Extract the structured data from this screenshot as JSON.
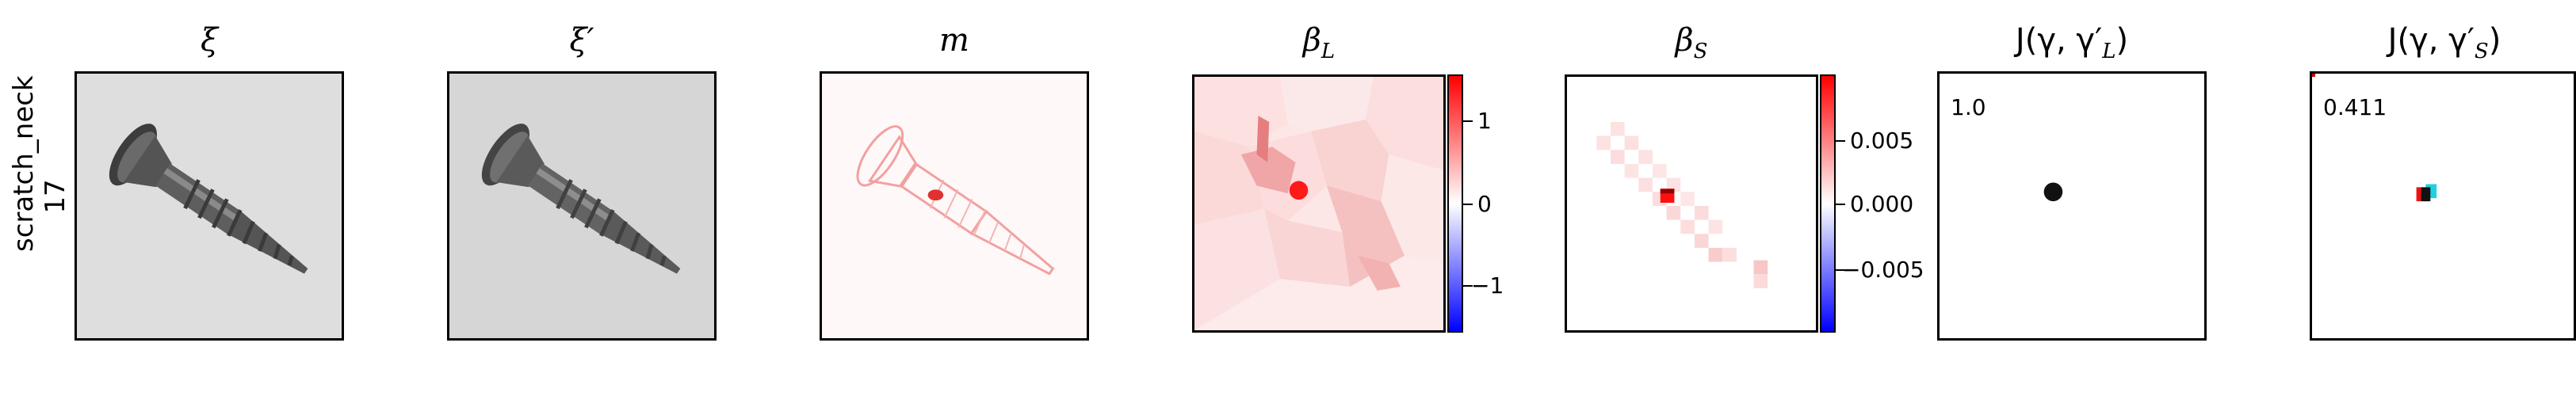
{
  "row_label": {
    "line1": "scratch_neck",
    "line2": "17"
  },
  "panels": {
    "xi": {
      "title": "ξ"
    },
    "xi_prime": {
      "title": "ξ′"
    },
    "m": {
      "title": "m"
    },
    "beta_l": {
      "title_main": "β",
      "title_sub": "L",
      "colorbar_ticks": [
        "1",
        "0",
        "−1"
      ]
    },
    "beta_s": {
      "title_main": "β",
      "title_sub": "S",
      "colorbar_ticks": [
        "0.005",
        "0.000",
        "−0.005"
      ]
    },
    "j_l": {
      "title": "J(γ, γ′",
      "title_sub": "L",
      "title_end": ")",
      "score": "1.0"
    },
    "j_s": {
      "title": "J(γ, γ′",
      "title_sub": "S",
      "title_end": ")",
      "score": "0.411"
    }
  },
  "colors": {
    "positive": "#ff0000",
    "neutral": "#ffffff",
    "negative": "#0000ff",
    "screw": "#5a5a5a",
    "background_gray": "#d9d9d9"
  }
}
